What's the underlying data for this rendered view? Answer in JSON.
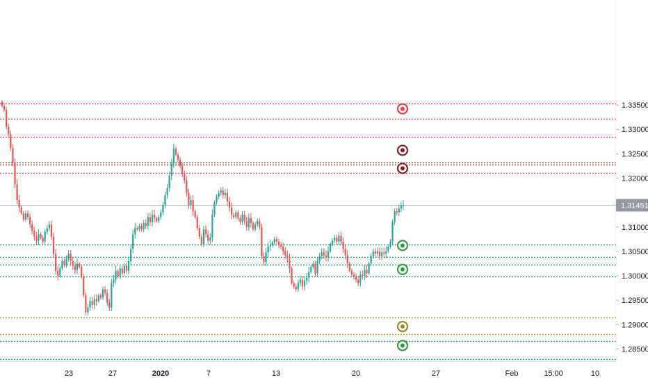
{
  "chart_data": {
    "type": "candlestick",
    "symbol": "",
    "ylim": [
      1.2825,
      1.3565
    ],
    "y_ticks": [
      "1.33500",
      "1.33000",
      "1.32500",
      "1.32000",
      "1.31500",
      "1.31000",
      "1.30500",
      "1.30000",
      "1.29500",
      "1.29000",
      "1.28500"
    ],
    "y_tick_values": [
      1.335,
      1.33,
      1.325,
      1.32,
      1.315,
      1.31,
      1.305,
      1.3,
      1.295,
      1.29,
      1.285
    ],
    "x_ticks": [
      "23",
      "27",
      "2020",
      "7",
      "13",
      "20",
      "27",
      "Feb",
      "15:00",
      "10"
    ],
    "last_price": {
      "label": "1.31451",
      "value": 1.31451,
      "color": "#9598a1"
    },
    "grid": false,
    "levels": [
      {
        "value": 1.3353,
        "color": "#f23645",
        "kind": "resistance"
      },
      {
        "value": 1.3322,
        "color": "#f23645",
        "kind": "resistance"
      },
      {
        "value": 1.3285,
        "color": "#f23645",
        "kind": "resistance"
      },
      {
        "value": 1.3232,
        "color": "#8b1a1a",
        "kind": "resistance"
      },
      {
        "value": 1.3228,
        "color": "#8b1a1a",
        "kind": "resistance"
      },
      {
        "value": 1.321,
        "color": "#f23645",
        "kind": "resistance"
      },
      {
        "value": 1.3064,
        "color": "#089981",
        "kind": "support"
      },
      {
        "value": 1.3038,
        "color": "#089981",
        "kind": "support"
      },
      {
        "value": 1.3023,
        "color": "#089981",
        "kind": "support"
      },
      {
        "value": 1.2998,
        "color": "#089981",
        "kind": "support"
      },
      {
        "value": 1.2915,
        "color": "#b3a200",
        "kind": "support"
      },
      {
        "value": 1.288,
        "color": "#b3a200",
        "kind": "support"
      },
      {
        "value": 1.2866,
        "color": "#089981",
        "kind": "support"
      },
      {
        "value": 1.2829,
        "color": "#089981",
        "kind": "support"
      }
    ],
    "markers": [
      {
        "value": 1.3342,
        "color": "#f23645"
      },
      {
        "value": 1.3257,
        "color": "#8b1a1a"
      },
      {
        "value": 1.322,
        "color": "#8b1a1a"
      },
      {
        "value": 1.3062,
        "color": "#2e9e3e"
      },
      {
        "value": 1.3013,
        "color": "#2e9e3e"
      },
      {
        "value": 1.2896,
        "color": "#9a8a2a"
      },
      {
        "value": 1.2857,
        "color": "#2e9e3e"
      }
    ],
    "colors": {
      "up": "#26a69a",
      "down": "#ef5350"
    },
    "candles_close": [
      1.3348,
      1.334,
      1.3305,
      1.329,
      1.3262,
      1.3232,
      1.3188,
      1.3155,
      1.314,
      1.3128,
      1.3115,
      1.3128,
      1.312,
      1.3105,
      1.3092,
      1.308,
      1.3072,
      1.3085,
      1.3078,
      1.307,
      1.309,
      1.3098,
      1.3105,
      1.308,
      1.3045,
      1.301,
      1.3,
      1.3015,
      1.303,
      1.3022,
      1.3035,
      1.3045,
      1.303,
      1.302,
      1.3012,
      1.3025,
      1.3018,
      1.2998,
      1.296,
      1.2925,
      1.2935,
      1.2948,
      1.294,
      1.2952,
      1.2948,
      1.296,
      1.2955,
      1.2972,
      1.2965,
      1.2945,
      1.2935,
      1.2985,
      1.2992,
      1.301,
      1.2998,
      1.3015,
      1.3005,
      1.302,
      1.301,
      1.303,
      1.3055,
      1.3085,
      1.3098,
      1.3095,
      1.3102,
      1.3095,
      1.3108,
      1.3102,
      1.312,
      1.311,
      1.3125,
      1.3118,
      1.3112,
      1.312,
      1.313,
      1.3145,
      1.3165,
      1.318,
      1.3205,
      1.323,
      1.326,
      1.3248,
      1.3238,
      1.3225,
      1.3208,
      1.3195,
      1.317,
      1.3145,
      1.3155,
      1.3132,
      1.312,
      1.3098,
      1.308,
      1.3065,
      1.3095,
      1.3085,
      1.3072,
      1.3078,
      1.3125,
      1.315,
      1.3162,
      1.317,
      1.3175,
      1.3165,
      1.317,
      1.3152,
      1.314,
      1.3125,
      1.312,
      1.313,
      1.3118,
      1.311,
      1.3125,
      1.3112,
      1.31,
      1.3118,
      1.3108,
      1.3095,
      1.3105,
      1.3112,
      1.31,
      1.304,
      1.3028,
      1.3048,
      1.306,
      1.3062,
      1.3068,
      1.3075,
      1.307,
      1.3062,
      1.306,
      1.305,
      1.3042,
      1.3035,
      1.3015,
      1.2985,
      1.2978,
      1.2972,
      1.2985,
      1.2992,
      1.2978,
      1.299,
      1.2996,
      1.3008,
      1.3018,
      1.3025,
      1.3005,
      1.303,
      1.304,
      1.3048,
      1.3042,
      1.3038,
      1.305,
      1.3065,
      1.3072,
      1.3078,
      1.307,
      1.3082,
      1.307,
      1.3055,
      1.3042,
      1.3025,
      1.301,
      1.3002,
      1.2998,
      1.2992,
      1.2985,
      1.3002,
      1.3,
      1.3012,
      1.3005,
      1.3025,
      1.304,
      1.305,
      1.3045,
      1.305,
      1.304,
      1.3048,
      1.3045,
      1.305,
      1.306,
      1.307,
      1.311,
      1.3132,
      1.313,
      1.3138,
      1.3143,
      1.3145
    ]
  }
}
